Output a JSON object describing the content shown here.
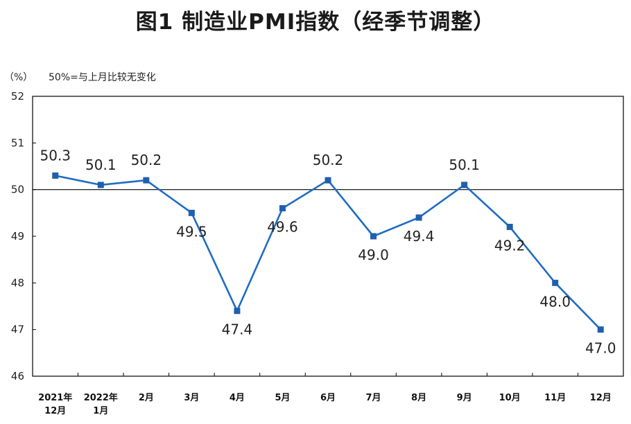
{
  "title": "图1 制造业PMI指数（经季节调整）",
  "unit_label": "（%）",
  "note": "50%=与上月比较无变化",
  "colors": {
    "line": "#1f6cc2",
    "marker": "#1f5fb0",
    "axis": "#000000",
    "text": "#222222"
  },
  "chart_data": {
    "type": "line",
    "title": "图1 制造业PMI指数（经季节调整）",
    "ylabel": "（%）",
    "xlabel": "",
    "ylim": [
      46,
      52
    ],
    "yticks": [
      46,
      47,
      48,
      49,
      50,
      51,
      52
    ],
    "reference_line": 50,
    "grid": false,
    "categories": [
      [
        "2021年",
        "12月"
      ],
      [
        "2022年",
        "1月"
      ],
      [
        "2月"
      ],
      [
        "3月"
      ],
      [
        "4月"
      ],
      [
        "5月"
      ],
      [
        "6月"
      ],
      [
        "7月"
      ],
      [
        "8月"
      ],
      [
        "9月"
      ],
      [
        "10月"
      ],
      [
        "11月"
      ],
      [
        "12月"
      ]
    ],
    "series": [
      {
        "values": [
          50.3,
          50.1,
          50.2,
          49.5,
          47.4,
          49.6,
          50.2,
          49.0,
          49.4,
          50.1,
          49.2,
          48.0,
          47.0
        ]
      }
    ],
    "data_labels": [
      "50.3",
      "50.1",
      "50.2",
      "49.5",
      "47.4",
      "49.6",
      "50.2",
      "49.0",
      "49.4",
      "50.1",
      "49.2",
      "48.0",
      "47.0"
    ]
  }
}
